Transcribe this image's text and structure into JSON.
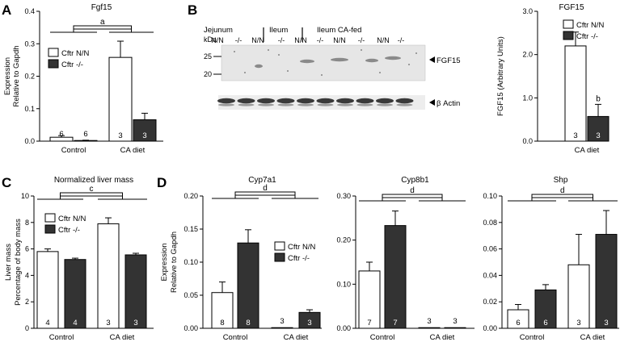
{
  "colors": {
    "cftr_nn": "#ffffff",
    "cftr_ko": "#333333",
    "axis": "#000000",
    "blot_bg": "#e6e6e6"
  },
  "panels": [
    {
      "letter": "A"
    },
    {
      "letter": "B"
    },
    {
      "letter": "C"
    },
    {
      "letter": "D"
    }
  ],
  "legend_labels": [
    "Cftr N/N",
    "Cftr -/-"
  ],
  "blot": {
    "group_labels": [
      "Jejunum",
      "Ileum",
      "Ileum CA-fed"
    ],
    "lane_labels": [
      "N/N",
      "-/-",
      "N/N",
      "-/-",
      "N/N",
      "-/-",
      "N/N",
      "-/-",
      "N/N",
      "-/-"
    ],
    "kda_label": "kDa",
    "markers": [
      "25",
      "20"
    ],
    "fgf15_label": "FGF15",
    "actin_label": "β Actin"
  },
  "chart_data": [
    {
      "id": "A",
      "type": "bar",
      "title": "Fgf15",
      "ylabel": [
        "Expression",
        "Relative to Gapdh"
      ],
      "categories": [
        "Control",
        "CA diet"
      ],
      "ylim": [
        0,
        0.4
      ],
      "yticks": [
        "0.0",
        "0.1",
        "0.2",
        "0.3",
        "0.4"
      ],
      "series": [
        {
          "name": "Cftr N/N",
          "values": [
            0.012,
            0.258
          ],
          "errors": [
            0.005,
            0.05
          ],
          "n": [
            "6",
            "3"
          ]
        },
        {
          "name": "Cftr -/-",
          "values": [
            0.002,
            0.066
          ],
          "errors": [
            0.001,
            0.02
          ],
          "n": [
            "6",
            "3"
          ]
        }
      ],
      "significance": "a",
      "legend_position": "left"
    },
    {
      "id": "B",
      "type": "bar",
      "title": "FGF15",
      "ylabel": [
        "FGF15 (Arbitrary Units)"
      ],
      "categories": [
        "CA diet"
      ],
      "ylim": [
        0,
        3.0
      ],
      "yticks": [
        "0.0",
        "1.0",
        "2.0",
        "3.0"
      ],
      "series": [
        {
          "name": "Cftr N/N",
          "values": [
            2.2
          ],
          "errors": [
            0.32
          ],
          "n": [
            "3"
          ]
        },
        {
          "name": "Cftr -/-",
          "values": [
            0.57
          ],
          "errors": [
            0.28
          ],
          "n": [
            "3"
          ],
          "marker": "b"
        }
      ],
      "legend_position": "top"
    },
    {
      "id": "C",
      "type": "bar",
      "title": "Normalized liver mass",
      "ylabel": [
        "Liver mass",
        "Percentage of body mass"
      ],
      "categories": [
        "Control",
        "CA diet"
      ],
      "ylim": [
        0,
        10
      ],
      "yticks": [
        "0",
        "2",
        "4",
        "6",
        "8",
        "10"
      ],
      "series": [
        {
          "name": "Cftr N/N",
          "values": [
            5.8,
            7.9
          ],
          "errors": [
            0.2,
            0.45
          ],
          "n": [
            "4",
            "3"
          ]
        },
        {
          "name": "Cftr -/-",
          "values": [
            5.2,
            5.55
          ],
          "errors": [
            0.1,
            0.12
          ],
          "n": [
            "4",
            "3"
          ]
        }
      ],
      "significance": "c",
      "legend_position": "left"
    },
    {
      "id": "D1",
      "type": "bar",
      "title": "Cyp7a1",
      "ylabel": [
        "Expression",
        "Relative to Gapdh"
      ],
      "categories": [
        "Control",
        "CA diet"
      ],
      "ylim": [
        0,
        0.2
      ],
      "yticks": [
        "0.00",
        "0.05",
        "0.10",
        "0.15",
        "0.20"
      ],
      "series": [
        {
          "name": "Cftr N/N",
          "values": [
            0.054,
            0.0005
          ],
          "errors": [
            0.016,
            0.0
          ],
          "n": [
            "8",
            "3"
          ]
        },
        {
          "name": "Cftr -/-",
          "values": [
            0.129,
            0.024
          ],
          "errors": [
            0.02,
            0.004
          ],
          "n": [
            "8",
            "3"
          ]
        }
      ],
      "significance": "d",
      "legend_position": "right"
    },
    {
      "id": "D2",
      "type": "bar",
      "title": "Cyp8b1",
      "categories": [
        "Control",
        "CA diet"
      ],
      "ylim": [
        0,
        0.3
      ],
      "yticks": [
        "0.00",
        "0.10",
        "0.20",
        "0.30"
      ],
      "series": [
        {
          "name": "Cftr N/N",
          "values": [
            0.13,
            0.0005
          ],
          "errors": [
            0.02,
            0.0
          ],
          "n": [
            "7",
            "3"
          ]
        },
        {
          "name": "Cftr -/-",
          "values": [
            0.233,
            0.0005
          ],
          "errors": [
            0.033,
            0.0
          ],
          "n": [
            "7",
            "3"
          ]
        }
      ],
      "significance": "d"
    },
    {
      "id": "D3",
      "type": "bar",
      "title": "Shp",
      "categories": [
        "Control",
        "CA diet"
      ],
      "ylim": [
        0,
        0.1
      ],
      "yticks": [
        "0.00",
        "0.02",
        "0.04",
        "0.06",
        "0.08",
        "0.10"
      ],
      "series": [
        {
          "name": "Cftr N/N",
          "values": [
            0.014,
            0.048
          ],
          "errors": [
            0.004,
            0.023
          ],
          "n": [
            "6",
            "3"
          ]
        },
        {
          "name": "Cftr -/-",
          "values": [
            0.029,
            0.071
          ],
          "errors": [
            0.004,
            0.018
          ],
          "n": [
            "6",
            "3"
          ]
        }
      ],
      "significance": "d"
    }
  ]
}
